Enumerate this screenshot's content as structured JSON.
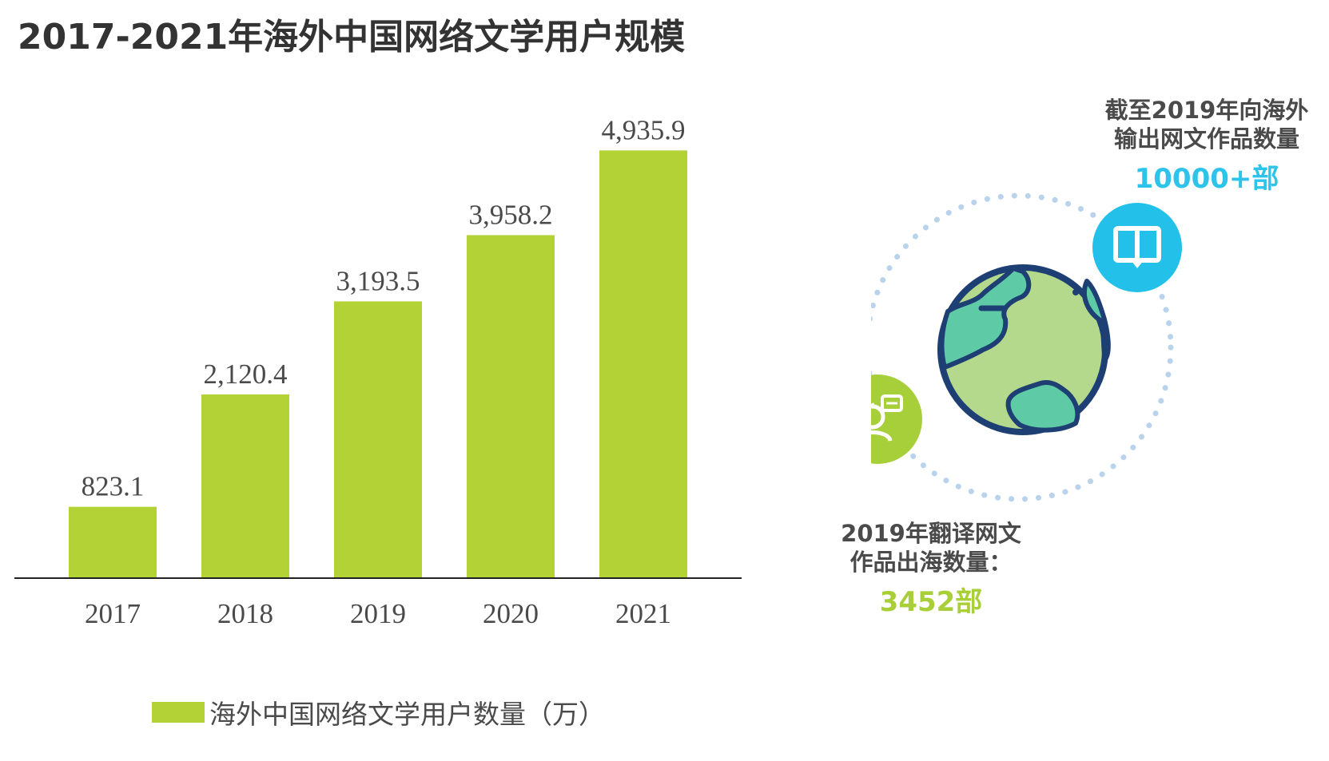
{
  "title": "2017-2021年海外中国网络文学用户规模",
  "chart_data": {
    "type": "bar",
    "categories": [
      "2017",
      "2018",
      "2019",
      "2020",
      "2021"
    ],
    "series": [
      {
        "name": "海外中国网络文学用户数量（万）",
        "values": [
          823.1,
          2120.4,
          3193.5,
          3958.2,
          4935.9
        ]
      }
    ],
    "value_labels": [
      "823.1",
      "2,120.4",
      "3,193.5",
      "3,958.2",
      "4,935.9"
    ],
    "ylim": [
      0,
      5400
    ],
    "grid": false,
    "legend": "bottom",
    "bar_color": "#b2d235"
  },
  "legend": {
    "label": "海外中国网络文学用户数量（万）"
  },
  "stats": {
    "export": {
      "label_line1": "截至2019年向海外",
      "label_line2": "输出网文作品数量",
      "value": "10000+部",
      "icon": "book-icon",
      "color": "#2ec3ea"
    },
    "translated": {
      "label_line1": "2019年翻译网文",
      "label_line2": "作品出海数量：",
      "value": "3452部",
      "icon": "translator-icon",
      "color": "#a8cf38"
    },
    "center_icon": "globe-icon"
  }
}
